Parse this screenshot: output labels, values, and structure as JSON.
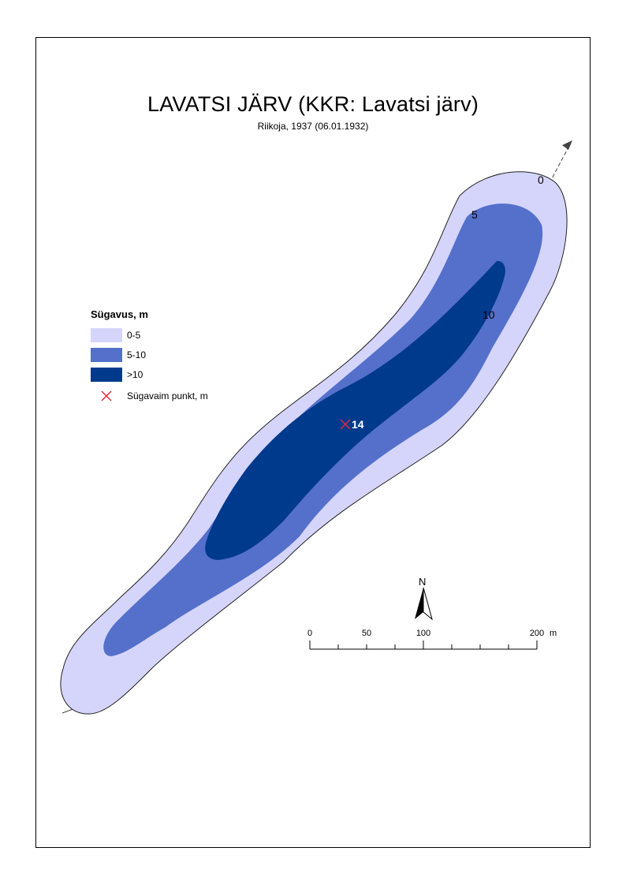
{
  "map": {
    "title": "LAVATSI JÄRV (KKR: Lavatsi järv)",
    "subtitle": "Riikoja, 1937 (06.01.1932)",
    "legend": {
      "title": "Sügavus, m",
      "classes": [
        {
          "label": "0-5",
          "color": "#d5d5fb"
        },
        {
          "label": "5-10",
          "color": "#5470cb"
        },
        {
          "label": ">10",
          "color": "#003a8c"
        }
      ],
      "deepest_label": "Sügavaim punkt, m",
      "deepest_color": "#e0283a"
    },
    "contour_labels": [
      "0",
      "5",
      "10"
    ],
    "deepest_value": "14",
    "north_label": "N",
    "scale_bar": {
      "ticks": [
        "0",
        "50",
        "100",
        "200"
      ],
      "unit": "m"
    }
  }
}
